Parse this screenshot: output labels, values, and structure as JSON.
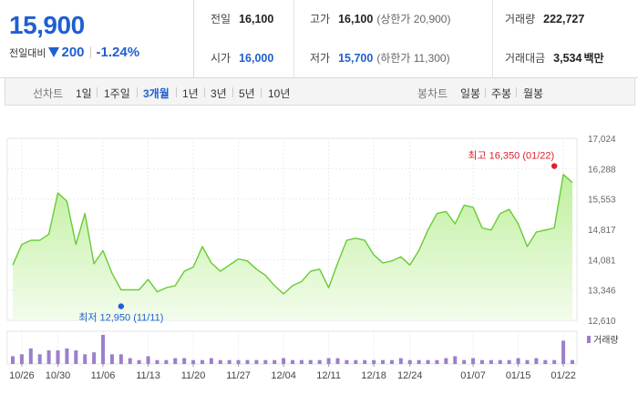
{
  "price": {
    "current": "15,900",
    "change_label": "전일대비",
    "change_amount": "200",
    "change_percent": "-1.24%"
  },
  "info": {
    "prev_close": {
      "label": "전일",
      "value": "16,100"
    },
    "open": {
      "label": "시가",
      "value": "16,000"
    },
    "high": {
      "label": "고가",
      "value": "16,100",
      "sub": "(상한가 20,900)"
    },
    "low": {
      "label": "저가",
      "value": "15,700",
      "sub": "(하한가 11,300)"
    },
    "volume": {
      "label": "거래량",
      "value": "222,727"
    },
    "trade_value": {
      "label": "거래대금",
      "value": "3,534",
      "unit": "백만"
    }
  },
  "tabs": {
    "line_title": "선차트",
    "line": [
      "1일",
      "1주일",
      "3개월",
      "1년",
      "3년",
      "5년",
      "10년"
    ],
    "active": "3개월",
    "candle_title": "봉차트",
    "candle": [
      "일봉",
      "주봉",
      "월봉"
    ]
  },
  "colors": {
    "accent_blue": "#1f5fd1",
    "line_green": "#66cc33",
    "area_green": "#d9f5c8",
    "high_red": "#e0202a",
    "volume_purple": "#9b7fcc"
  },
  "chart_data": {
    "type": "area",
    "y_ticks": [
      "17,024",
      "16,288",
      "15,553",
      "14,817",
      "14,081",
      "13,346",
      "12,610"
    ],
    "y_tick_values": [
      17024,
      16288,
      15553,
      14817,
      14081,
      13346,
      12610
    ],
    "ylim": [
      12610,
      17024
    ],
    "x_tick_labels": [
      "10/26",
      "10/30",
      "11/06",
      "11/13",
      "11/20",
      "11/27",
      "12/04",
      "12/11",
      "12/18",
      "12/24",
      "01/07",
      "01/15",
      "01/22"
    ],
    "x_tick_index": [
      1,
      5,
      10,
      15,
      20,
      25,
      30,
      35,
      40,
      44,
      51,
      56,
      61
    ],
    "grid": true,
    "high_annotation": "최고 16,350 (01/22)",
    "low_annotation": "최저 12,950 (11/11)",
    "high_index": 60,
    "high_value": 16350,
    "low_index": 12,
    "low_value": 12950,
    "volume_legend": "거래량",
    "series": [
      {
        "name": "",
        "values": [
          13950,
          14450,
          14550,
          14550,
          14700,
          15700,
          15500,
          14450,
          15200,
          13980,
          14300,
          13750,
          13350,
          13350,
          13350,
          13600,
          13300,
          13400,
          13450,
          13800,
          13900,
          14400,
          14000,
          13800,
          13950,
          14100,
          14050,
          13850,
          13700,
          13450,
          13250,
          13450,
          13550,
          13800,
          13850,
          13400,
          14000,
          14550,
          14600,
          14550,
          14200,
          14000,
          14050,
          14150,
          13950,
          14300,
          14800,
          15200,
          15250,
          14950,
          15400,
          15350,
          14850,
          14800,
          15200,
          15300,
          14950,
          14400,
          14750,
          14800,
          14850,
          16150,
          15950
        ]
      }
    ],
    "volume": [
      4,
      5,
      8,
      5,
      7,
      7,
      8,
      7,
      5,
      6,
      15,
      5,
      5,
      3,
      2,
      4,
      2,
      2,
      3,
      3,
      2,
      2,
      3,
      2,
      2,
      2,
      2,
      2,
      2,
      2,
      3,
      2,
      2,
      2,
      2,
      3,
      3,
      2,
      2,
      2,
      2,
      2,
      2,
      3,
      2,
      2,
      2,
      2,
      3,
      4,
      2,
      3,
      2,
      2,
      2,
      2,
      3,
      2,
      3,
      2,
      2,
      12,
      2
    ]
  }
}
